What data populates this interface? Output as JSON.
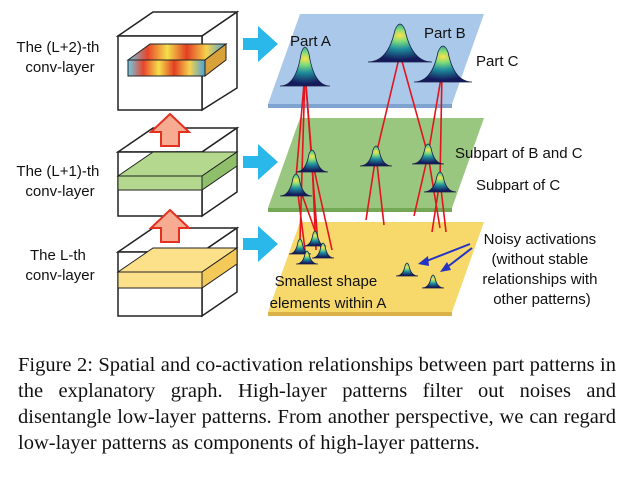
{
  "figure": {
    "layer_labels": {
      "top": [
        "The (L+2)-th",
        "conv-layer"
      ],
      "middle": [
        "The (L+1)-th",
        "conv-layer"
      ],
      "bottom": [
        "The L-th",
        "conv-layer"
      ]
    },
    "annotations": {
      "part_a": "Part A",
      "part_b": "Part B",
      "part_c": "Part C",
      "subpart_bc": "Subpart of B and C",
      "subpart_c": "Subpart of C",
      "noisy": [
        "Noisy activations",
        "(without stable",
        "relationships with",
        "other patterns)"
      ],
      "smallest": [
        "Smallest shape",
        "elements within A"
      ]
    },
    "colors": {
      "top_plane": "#a9c8ea",
      "middle_plane": "#9ac77f",
      "bottom_plane": "#f6d86b",
      "arrow_right": "#2ab7ea",
      "arrow_up": "#f7ac92",
      "edges": "#e3141b",
      "noise_arrows": "#2533c4"
    }
  },
  "caption": "Figure 2: Spatial and co-activation relationships between part patterns in the explanatory graph. High-layer patterns filter out noises and disentangle low-layer patterns. From an­other perspective, we can regard low-layer patterns as com­ponents of high-layer patterns."
}
